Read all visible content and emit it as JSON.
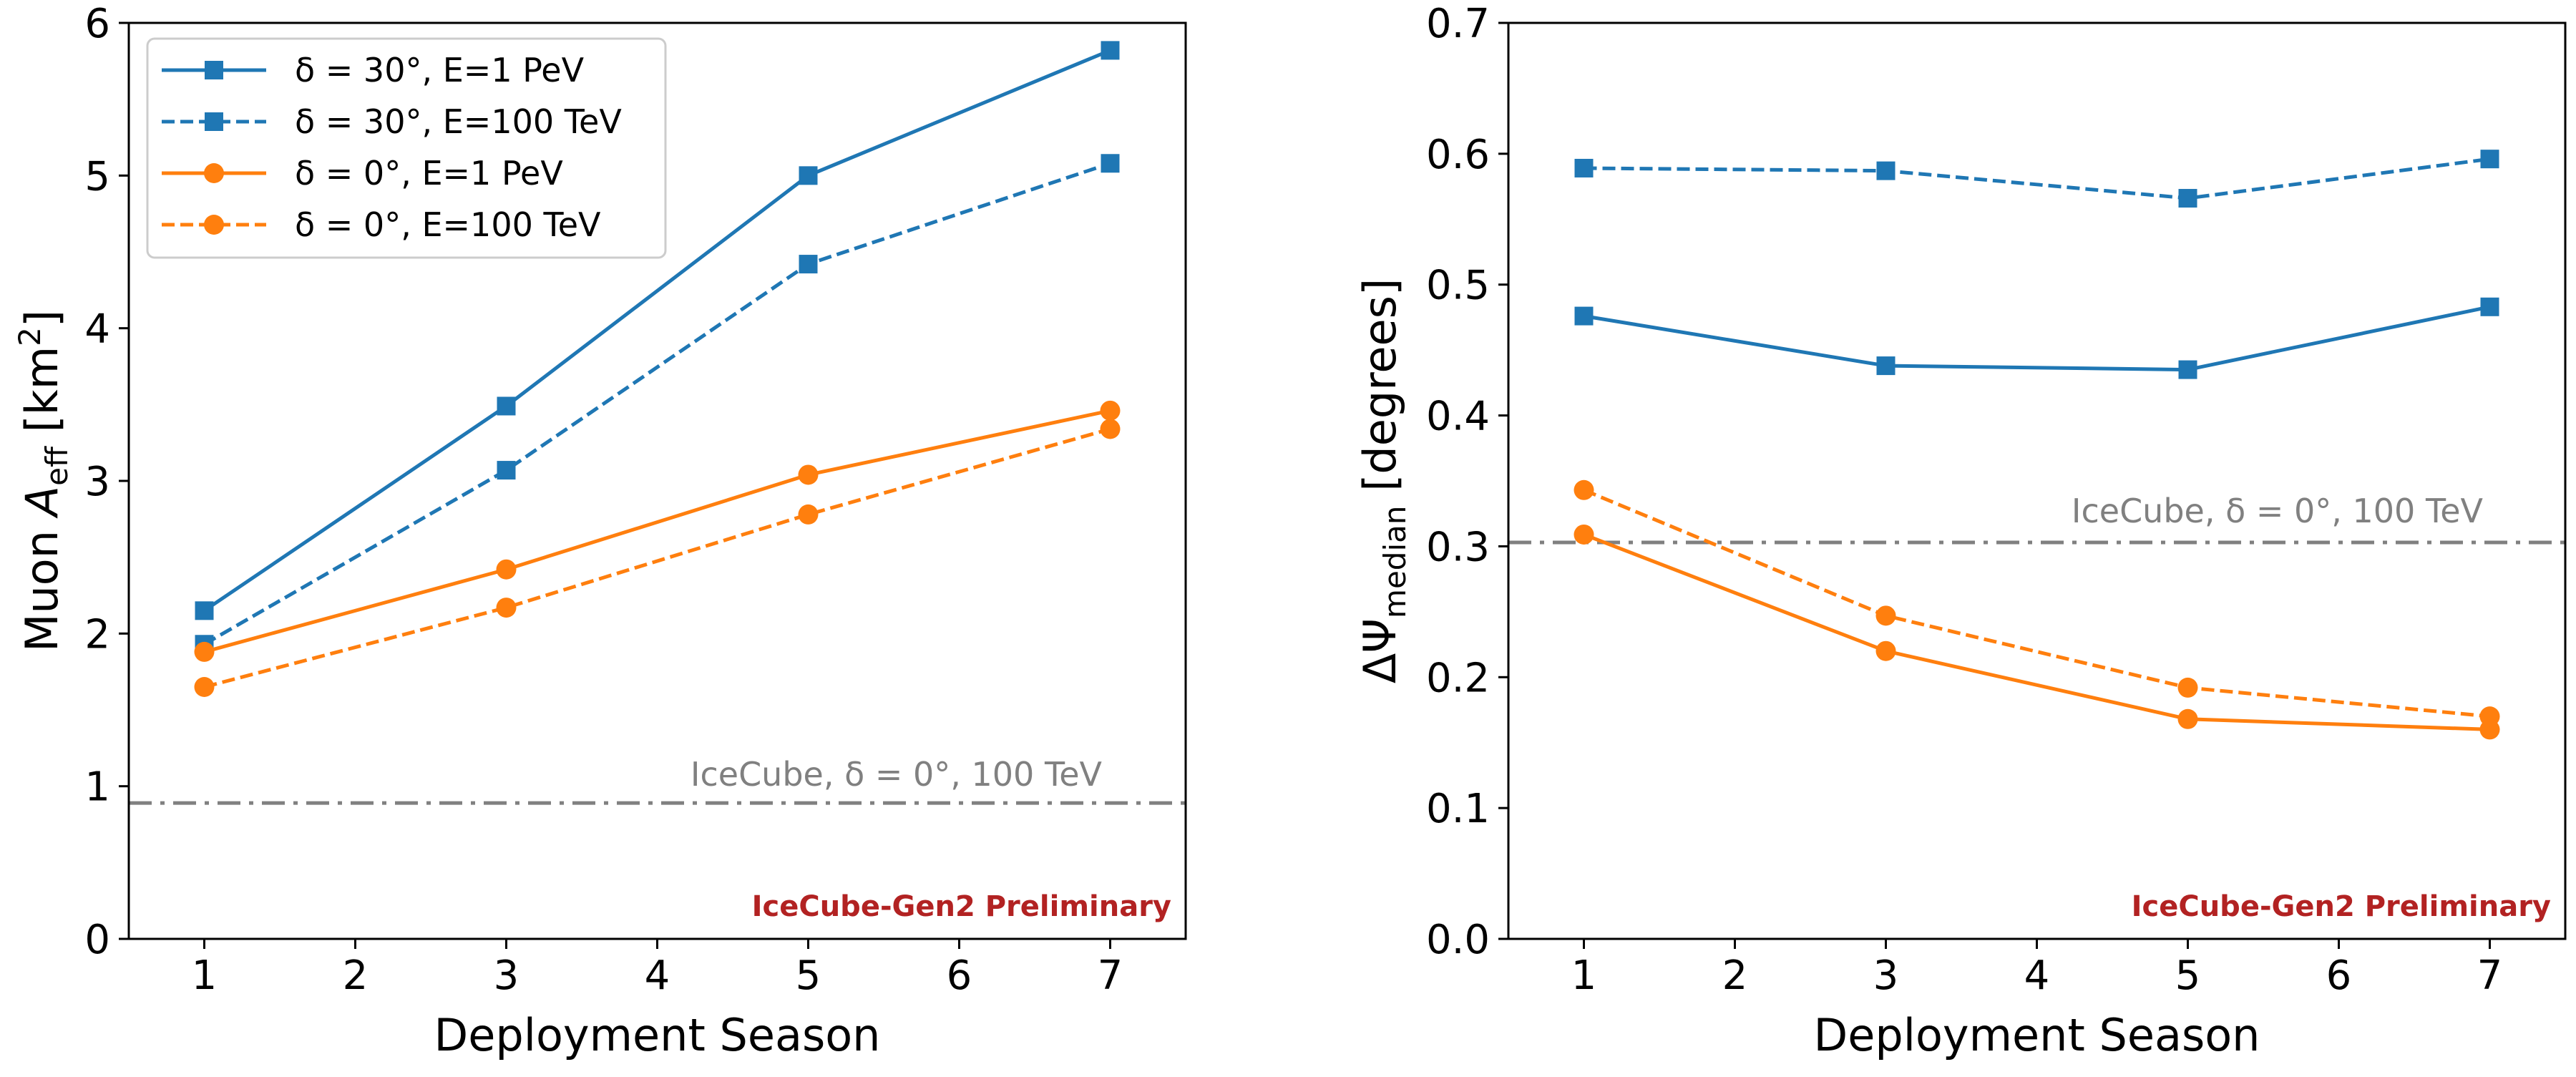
{
  "chart_data": [
    {
      "type": "line",
      "xlabel": "Deployment Season",
      "ylabel_main": "Muon ",
      "ylabel_var": "A",
      "ylabel_sub": "eff",
      "ylabel_unit_pre": " [km",
      "ylabel_unit_sup": "2",
      "ylabel_unit_post": "]",
      "xlim": [
        0.5,
        7.5
      ],
      "ylim": [
        0,
        6
      ],
      "xticks": [
        1,
        2,
        3,
        4,
        5,
        6,
        7
      ],
      "yticks": [
        0,
        1,
        2,
        3,
        4,
        5,
        6
      ],
      "ytick_labels": [
        "0",
        "1",
        "2",
        "3",
        "4",
        "5",
        "6"
      ],
      "x": [
        1,
        3,
        5,
        7
      ],
      "series": [
        {
          "name": "δ = 30°, E=1 PeV",
          "color": "#1f77b4",
          "linestyle": "solid",
          "marker": "square",
          "values": [
            2.15,
            3.49,
            5.0,
            5.82
          ]
        },
        {
          "name": "δ = 30°, E=100 TeV",
          "color": "#1f77b4",
          "linestyle": "dashed",
          "marker": "square",
          "values": [
            1.93,
            3.07,
            4.42,
            5.08
          ]
        },
        {
          "name": "δ =   0°, E=1 PeV",
          "color": "#ff7f0e",
          "linestyle": "solid",
          "marker": "circle",
          "values": [
            1.88,
            2.42,
            3.04,
            3.46
          ]
        },
        {
          "name": "δ =   0°, E=100 TeV",
          "color": "#ff7f0e",
          "linestyle": "dashed",
          "marker": "circle",
          "values": [
            1.65,
            2.17,
            2.78,
            3.34
          ]
        }
      ],
      "reference": {
        "label": "IceCube, δ = 0°, 100 TeV",
        "value": 0.89,
        "color": "#808080"
      },
      "watermark": "IceCube-Gen2 Preliminary",
      "watermark_color": "#b22222",
      "legend": "upper-left",
      "grid": false
    },
    {
      "type": "line",
      "xlabel": "Deployment Season",
      "ylabel_main": "ΔΨ",
      "ylabel_sub": "median",
      "ylabel_unit_post": " [degrees]",
      "xlim": [
        0.5,
        7.5
      ],
      "ylim": [
        0,
        0.7
      ],
      "xticks": [
        1,
        2,
        3,
        4,
        5,
        6,
        7
      ],
      "yticks": [
        0,
        0.1,
        0.2,
        0.3,
        0.4,
        0.5,
        0.6,
        0.7
      ],
      "ytick_labels": [
        "0.0",
        "0.1",
        "0.2",
        "0.3",
        "0.4",
        "0.5",
        "0.6",
        "0.7"
      ],
      "x": [
        1,
        3,
        5,
        7
      ],
      "series": [
        {
          "color": "#1f77b4",
          "linestyle": "solid",
          "marker": "square",
          "values": [
            0.476,
            0.438,
            0.435,
            0.483
          ]
        },
        {
          "color": "#1f77b4",
          "linestyle": "dashed",
          "marker": "square",
          "values": [
            0.589,
            0.587,
            0.566,
            0.596
          ]
        },
        {
          "color": "#ff7f0e",
          "linestyle": "solid",
          "marker": "circle",
          "values": [
            0.309,
            0.22,
            0.168,
            0.16
          ]
        },
        {
          "color": "#ff7f0e",
          "linestyle": "dashed",
          "marker": "circle",
          "values": [
            0.343,
            0.247,
            0.192,
            0.17
          ]
        }
      ],
      "reference": {
        "label": "IceCube, δ = 0°, 100 TeV",
        "value": 0.303,
        "color": "#808080"
      },
      "watermark": "IceCube-Gen2 Preliminary",
      "watermark_color": "#b22222",
      "grid": false
    }
  ]
}
